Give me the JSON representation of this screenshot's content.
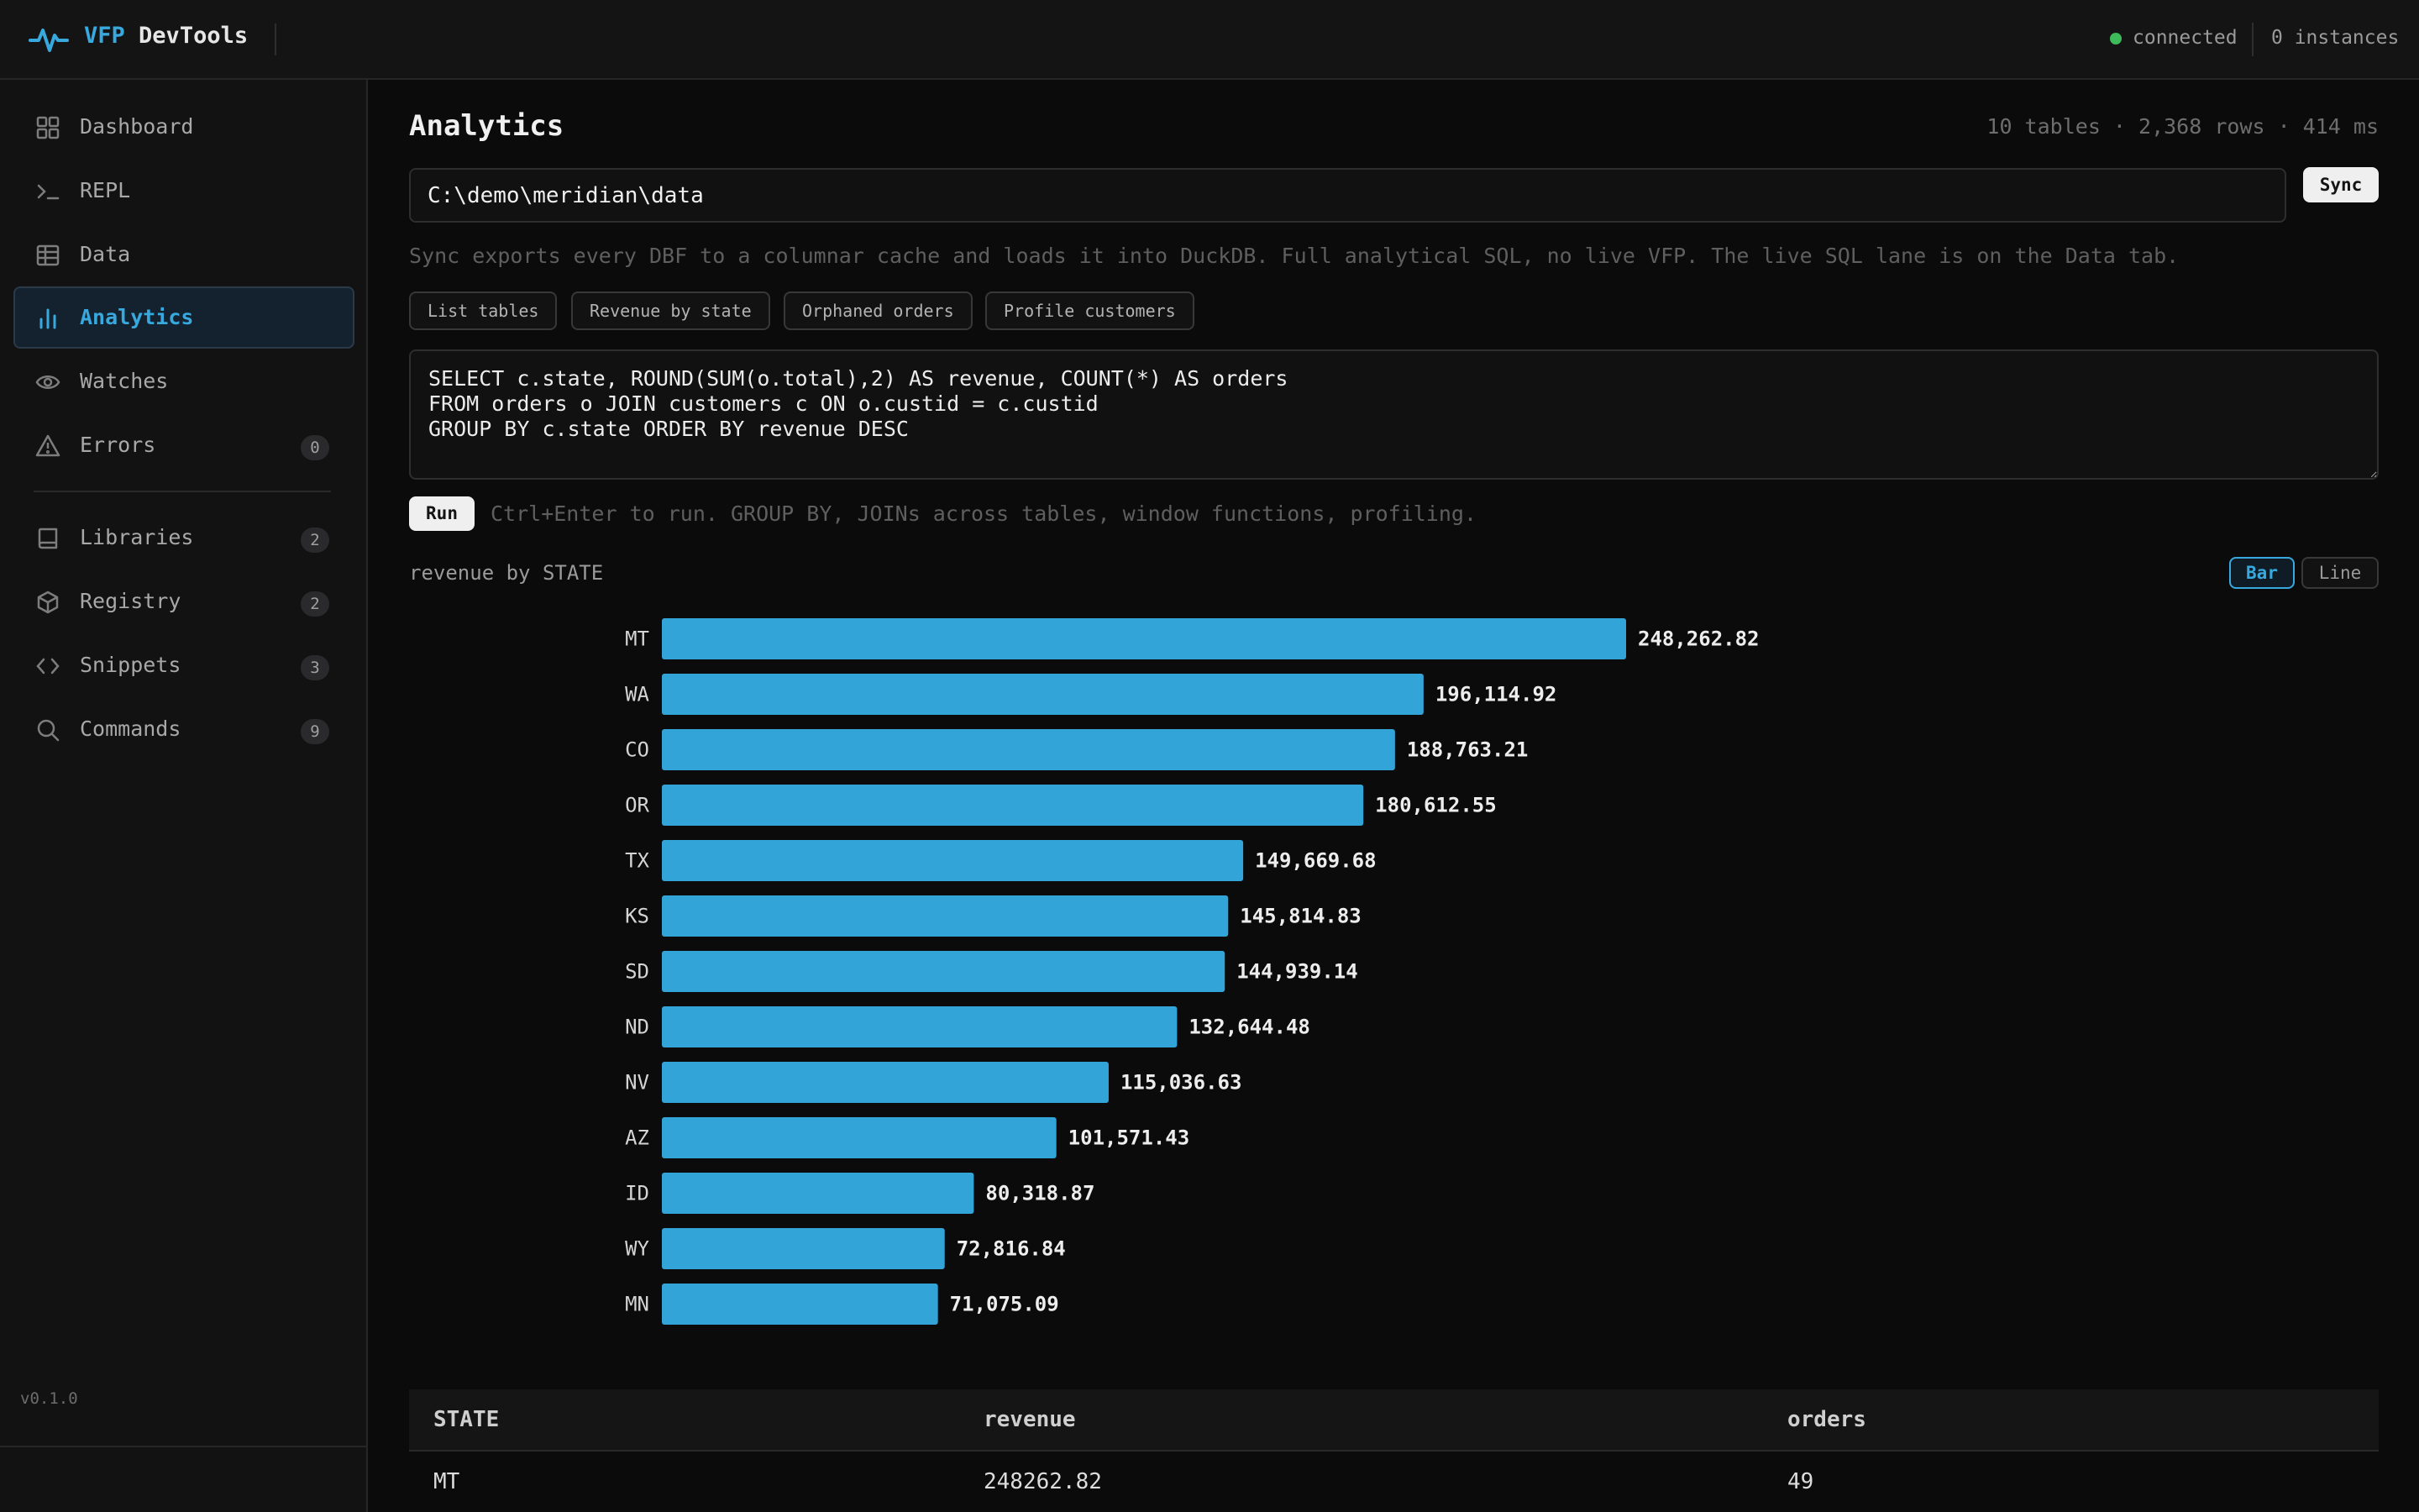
{
  "app": {
    "brand_accent": "VFP",
    "brand_rest": "DevTools",
    "status": "connected",
    "instances": "0 instances",
    "version": "v0.1.0",
    "accent_color": "#38a9df",
    "status_color": "#3dbb5a"
  },
  "sidebar": {
    "items": [
      {
        "label": "Dashboard",
        "icon": "grid-icon"
      },
      {
        "label": "REPL",
        "icon": "terminal-icon"
      },
      {
        "label": "Data",
        "icon": "table-icon"
      },
      {
        "label": "Analytics",
        "icon": "bar-chart-icon",
        "active": true
      },
      {
        "label": "Watches",
        "icon": "eye-icon"
      },
      {
        "label": "Errors",
        "icon": "warning-icon",
        "badge": "0"
      },
      {
        "label": "Libraries",
        "icon": "book-icon",
        "badge": "2"
      },
      {
        "label": "Registry",
        "icon": "cube-icon",
        "badge": "2"
      },
      {
        "label": "Snippets",
        "icon": "code-icon",
        "badge": "3"
      },
      {
        "label": "Commands",
        "icon": "search-icon",
        "badge": "9"
      }
    ]
  },
  "main": {
    "title": "Analytics",
    "meta": "10 tables · 2,368 rows · 414 ms",
    "path_value": "C:\\demo\\meridian\\data",
    "sync_label": "Sync",
    "help_text": "Sync exports every DBF to a columnar cache and loads it into DuckDB. Full analytical SQL, no live VFP. The live SQL lane is on the Data tab.",
    "presets": [
      "List tables",
      "Revenue by state",
      "Orphaned orders",
      "Profile customers"
    ],
    "sql": "SELECT c.state, ROUND(SUM(o.total),2) AS revenue, COUNT(*) AS orders\nFROM orders o JOIN customers c ON o.custid = c.custid\nGROUP BY c.state ORDER BY revenue DESC",
    "run_label": "Run",
    "run_hint": "Ctrl+Enter to run. GROUP BY, JOINs across tables, window functions, profiling.",
    "chart_label": "revenue by STATE",
    "toggle_bar": "Bar",
    "toggle_line": "Line"
  },
  "chart_data": {
    "type": "bar",
    "orientation": "horizontal",
    "title": "revenue by STATE",
    "categories": [
      "MT",
      "WA",
      "CO",
      "OR",
      "TX",
      "KS",
      "SD",
      "ND",
      "NV",
      "AZ",
      "ID",
      "WY",
      "MN"
    ],
    "values": [
      248262.82,
      196114.92,
      188763.21,
      180612.55,
      149669.68,
      145814.83,
      144939.14,
      132644.48,
      115036.63,
      101571.43,
      80318.87,
      72816.84,
      71075.09
    ],
    "labels": [
      "248,262.82",
      "196,114.92",
      "188,763.21",
      "180,612.55",
      "149,669.68",
      "145,814.83",
      "144,939.14",
      "132,644.48",
      "115,036.63",
      "101,571.43",
      "80,318.87",
      "72,816.84",
      "71,075.09"
    ],
    "bar_color": "#33a4d8",
    "grid": false
  },
  "table": {
    "headers": [
      "STATE",
      "revenue",
      "orders"
    ],
    "rows": [
      [
        "MT",
        "248262.82",
        "49"
      ]
    ]
  }
}
